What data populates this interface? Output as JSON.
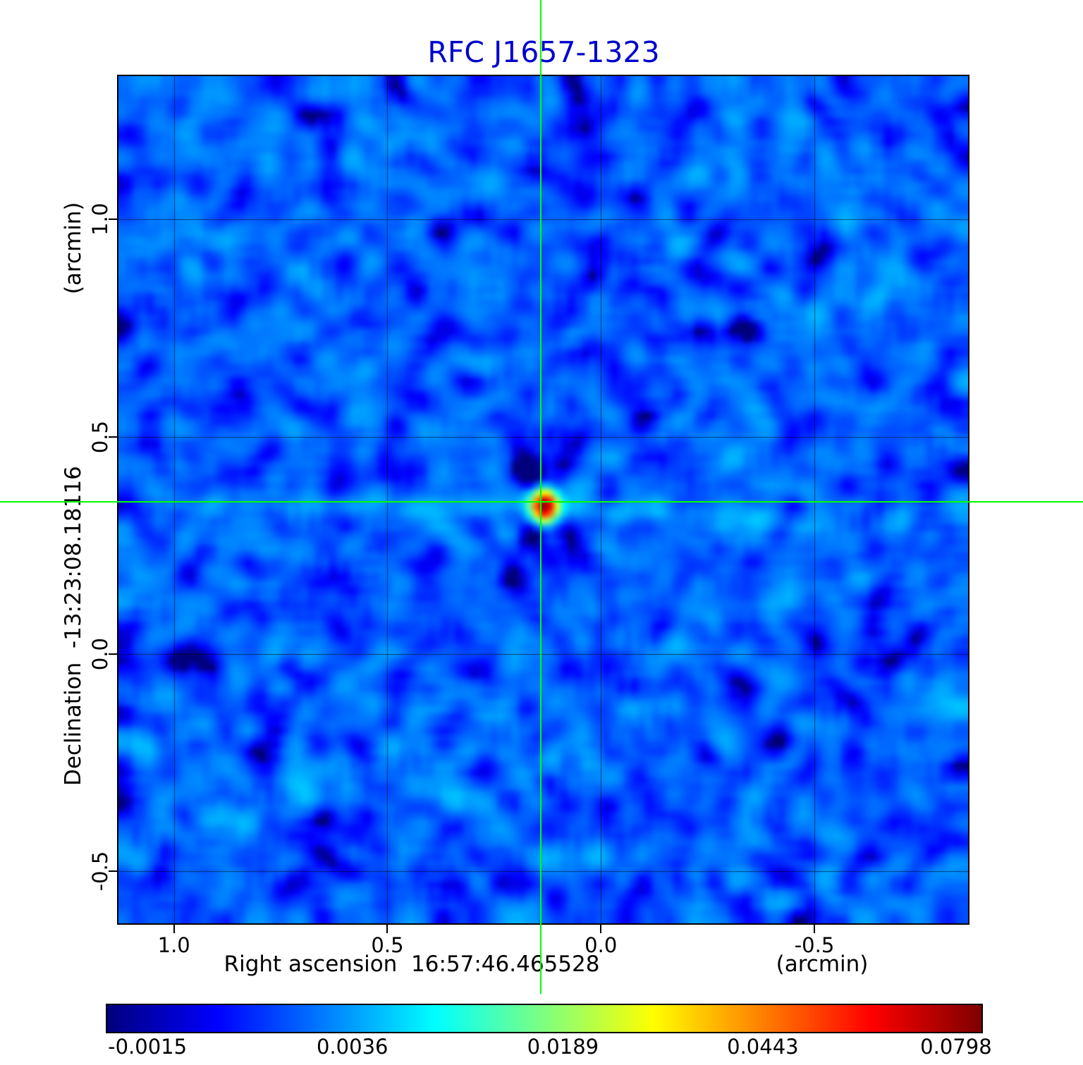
{
  "title": "RFC J1657-1323",
  "colors": {
    "title": "#0000cd",
    "crosshair": "#00ff00",
    "axis_text": "#000000",
    "background": "#ffffff"
  },
  "axes": {
    "y_unit": "(arcmin)",
    "y_label": "Declination  -13:23:08.18116",
    "x_label": "Right ascension  16:57:46.465528",
    "x_unit": "(arcmin)",
    "x_ticks": [
      "1.0",
      "0.5",
      "0.0",
      "-0.5"
    ],
    "y_ticks": [
      "1.0",
      "0.5",
      "0.0",
      "-0.5"
    ]
  },
  "colorbar": {
    "tick_labels": [
      "-0.0015",
      "0.0036",
      "0.0189",
      "0.0443",
      "0.0798"
    ]
  },
  "chart_data": {
    "type": "heatmap",
    "title": "RFC J1657-1323",
    "xlabel": "Right ascension 16:57:46.465528 (arcmin)",
    "ylabel": "Declination -13:23:08.18116 (arcmin)",
    "x_axis": {
      "unit": "arcmin",
      "ticks": [
        1.0,
        0.5,
        0.0,
        -0.5
      ],
      "range": [
        1.13,
        -0.86
      ]
    },
    "y_axis": {
      "unit": "arcmin",
      "ticks": [
        1.0,
        0.5,
        0.0,
        -0.5
      ],
      "range": [
        -0.62,
        1.33
      ]
    },
    "grid": true,
    "colormap": "jet",
    "normalization": {
      "type": "power",
      "gamma": 0.45,
      "vmin": -0.0016,
      "vmax": 0.085
    },
    "colorbar_ticks": [
      -0.0015,
      0.0036,
      0.0189,
      0.0443,
      0.0798
    ],
    "peak_source": {
      "x_arcmin": 0.14,
      "y_arcmin": 0.35,
      "peak_flux": 0.0798
    },
    "noise": {
      "mean": 0.0012,
      "sigma": 0.0013
    },
    "features": "compact bright central source with dark sidelobe X-spikes and faint horizontal stripe artifacts",
    "crosshair": {
      "marks_source": true,
      "color": "#00ff00"
    }
  }
}
